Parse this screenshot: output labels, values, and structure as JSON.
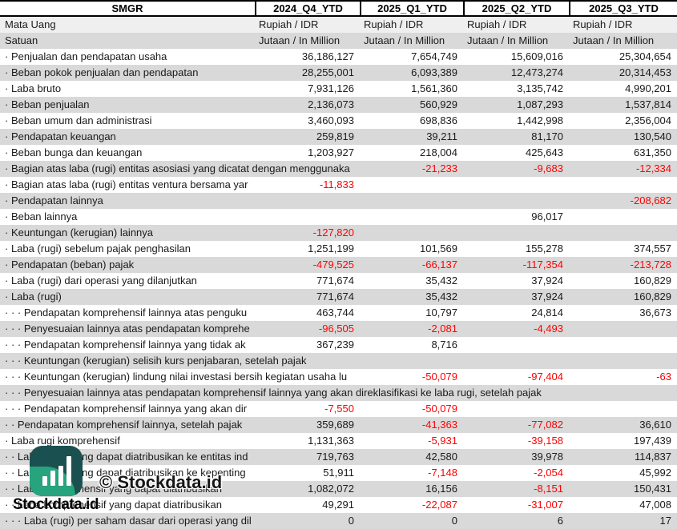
{
  "table": {
    "ticker": "SMGR",
    "period_columns": [
      "2024_Q4_YTD",
      "2025_Q1_YTD",
      "2025_Q2_YTD",
      "2025_Q3_YTD"
    ],
    "rows": [
      {
        "label": "Mata Uang",
        "values": [
          "Rupiah / IDR",
          "Rupiah / IDR",
          "Rupiah / IDR",
          "Rupiah / IDR"
        ]
      },
      {
        "label": "Satuan",
        "values": [
          "Jutaan / In Million",
          "Jutaan / In Million",
          "Jutaan / In Million",
          "Jutaan / In Million"
        ]
      },
      {
        "label": "· Penjualan dan pendapatan usaha",
        "values": [
          "36,186,127",
          "7,654,749",
          "15,609,016",
          "25,304,654"
        ]
      },
      {
        "label": "· Beban pokok penjualan dan pendapatan",
        "values": [
          "28,255,001",
          "6,093,389",
          "12,473,274",
          "20,314,453"
        ]
      },
      {
        "label": "· Laba bruto",
        "values": [
          "7,931,126",
          "1,561,360",
          "3,135,742",
          "4,990,201"
        ]
      },
      {
        "label": "· Beban penjualan",
        "values": [
          "2,136,073",
          "560,929",
          "1,087,293",
          "1,537,814"
        ]
      },
      {
        "label": "· Beban umum dan administrasi",
        "values": [
          "3,460,093",
          "698,836",
          "1,442,998",
          "2,356,004"
        ]
      },
      {
        "label": "· Pendapatan keuangan",
        "values": [
          "259,819",
          "39,211",
          "81,170",
          "130,540"
        ]
      },
      {
        "label": "· Beban bunga dan keuangan",
        "values": [
          "1,203,927",
          "218,004",
          "425,643",
          "631,350"
        ]
      },
      {
        "label": "· Bagian atas laba (rugi) entitas asosiasi yang dicatat dengan menggunaka",
        "values": [
          "",
          "-21,233",
          "-9,683",
          "-12,334"
        ]
      },
      {
        "label": "· Bagian atas laba (rugi) entitas ventura bersama yar",
        "values": [
          "-11,833",
          "",
          "",
          ""
        ]
      },
      {
        "label": "· Pendapatan lainnya",
        "values": [
          "",
          "",
          "",
          "-208,682"
        ]
      },
      {
        "label": "· Beban lainnya",
        "values": [
          "",
          "",
          "96,017",
          ""
        ]
      },
      {
        "label": "· Keuntungan (kerugian) lainnya",
        "values": [
          "-127,820",
          "",
          "",
          ""
        ]
      },
      {
        "label": "· Laba (rugi) sebelum pajak penghasilan",
        "values": [
          "1,251,199",
          "101,569",
          "155,278",
          "374,557"
        ]
      },
      {
        "label": "· Pendapatan (beban) pajak",
        "values": [
          "-479,525",
          "-66,137",
          "-117,354",
          "-213,728"
        ]
      },
      {
        "label": "· Laba (rugi) dari operasi yang dilanjutkan",
        "values": [
          "771,674",
          "35,432",
          "37,924",
          "160,829"
        ]
      },
      {
        "label": "· Laba (rugi)",
        "values": [
          "771,674",
          "35,432",
          "37,924",
          "160,829"
        ]
      },
      {
        "label": "· · · Pendapatan komprehensif lainnya atas penguku",
        "values": [
          "463,744",
          "10,797",
          "24,814",
          "36,673"
        ]
      },
      {
        "label": "· · · Penyesuaian lainnya atas pendapatan komprehe",
        "values": [
          "-96,505",
          "-2,081",
          "-4,493",
          ""
        ]
      },
      {
        "label": "· · · Pendapatan komprehensif lainnya yang tidak ak",
        "values": [
          "367,239",
          "8,716",
          "",
          ""
        ]
      },
      {
        "label": "· · · Keuntungan (kerugian) selisih kurs penjabaran, setelah pajak",
        "values": [
          "",
          "",
          "",
          ""
        ]
      },
      {
        "label": "· · · Keuntungan (kerugian) lindung nilai investasi bersih kegiatan usaha lu",
        "values": [
          "",
          "-50,079",
          "-97,404",
          "-63"
        ]
      },
      {
        "label": "· · · Penyesuaian lainnya atas pendapatan komprehensif lainnya yang akan direklasifikasi ke laba rugi, setelah pajak",
        "values": [
          "",
          "",
          "",
          ""
        ]
      },
      {
        "label": "· · · Pendapatan komprehensif lainnya yang akan dir",
        "values": [
          "-7,550",
          "-50,079",
          "",
          ""
        ]
      },
      {
        "label": "· · Pendapatan komprehensif lainnya, setelah pajak",
        "values": [
          "359,689",
          "-41,363",
          "-77,082",
          "36,610"
        ]
      },
      {
        "label": "· Laba rugi komprehensif",
        "values": [
          "1,131,363",
          "-5,931",
          "-39,158",
          "197,439"
        ]
      },
      {
        "label": "· · Laba (rugi) yang dapat diatribusikan ke entitas ind",
        "values": [
          "719,763",
          "42,580",
          "39,978",
          "114,837"
        ]
      },
      {
        "label": "· · Laba (rugi) yang dapat diatribusikan ke kepenting",
        "values": [
          "51,911",
          "-7,148",
          "-2,054",
          "45,992"
        ]
      },
      {
        "label": "· · Laba komprehensif yang dapat diatribusikan",
        "values": [
          "1,082,072",
          "16,156",
          "-8,151",
          "150,431"
        ]
      },
      {
        "label": "· · Laba komprehensif yang dapat diatribusikan",
        "values": [
          "49,291",
          "-22,087",
          "-31,007",
          "47,008"
        ]
      },
      {
        "label": "· · · Laba (rugi) per saham dasar dari operasi yang dil",
        "values": [
          "0",
          "0",
          "6",
          "17"
        ]
      }
    ]
  },
  "watermark": {
    "brand": "Stockdata.id",
    "copyright": "© Stockdata.id",
    "icon": "bar-chart-icon",
    "colors": {
      "logo_dark": "#1b5050",
      "logo_green": "#27a37d",
      "negative_value": "#fe0000",
      "stripe_gray": "#d9d9d9",
      "stripe_light": "#efefef"
    }
  }
}
